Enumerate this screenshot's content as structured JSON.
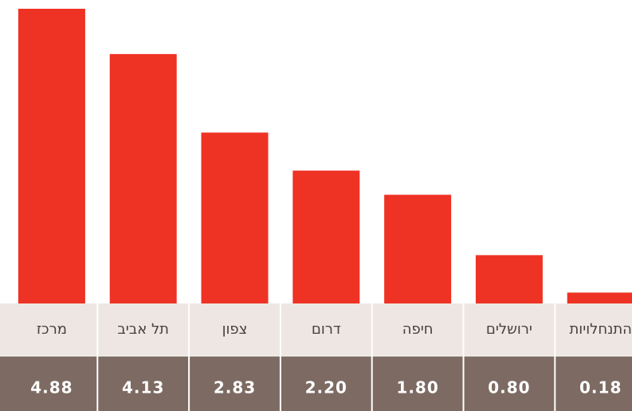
{
  "chart_data": {
    "type": "bar",
    "categories": [
      "מרכז",
      "תל אביב",
      "צפון",
      "דרום",
      "חיפה",
      "ירושלים",
      "התנחלויות"
    ],
    "values": [
      4.88,
      4.13,
      2.83,
      2.2,
      1.8,
      0.8,
      0.18
    ],
    "value_labels": [
      "4.88",
      "4.13",
      "2.83",
      "2.20",
      "1.80",
      "0.80",
      "0.18"
    ],
    "color": "#ee3224"
  }
}
